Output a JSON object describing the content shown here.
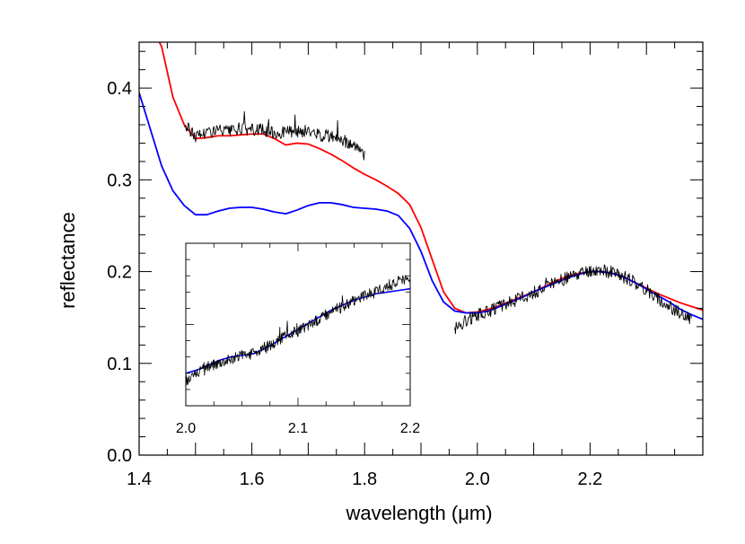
{
  "chart_data": [
    {
      "type": "line",
      "title": "",
      "xlabel": "wavelength (μm)",
      "ylabel": "reflectance",
      "xlim": [
        1.4,
        2.4
      ],
      "ylim": [
        0.0,
        0.45
      ],
      "x_ticks": [
        1.4,
        1.6,
        1.8,
        2.0,
        2.2
      ],
      "x_tick_labels": [
        "1.4",
        "1.6",
        "1.8",
        "2.0",
        "2.2"
      ],
      "y_ticks": [
        0.0,
        0.1,
        0.2,
        0.3,
        0.4
      ],
      "y_tick_labels": [
        "0.0",
        "0.1",
        "0.2",
        "0.3",
        "0.4"
      ],
      "grid": false,
      "series": [
        {
          "color": "#ff0000",
          "x": [
            1.4,
            1.42,
            1.44,
            1.46,
            1.48,
            1.5,
            1.52,
            1.54,
            1.56,
            1.58,
            1.6,
            1.62,
            1.64,
            1.66,
            1.68,
            1.7,
            1.72,
            1.74,
            1.76,
            1.78,
            1.8,
            1.82,
            1.84,
            1.86,
            1.88,
            1.9,
            1.92,
            1.94,
            1.96,
            1.98,
            2.0,
            2.02,
            2.04,
            2.06,
            2.08,
            2.1,
            2.12,
            2.14,
            2.16,
            2.18,
            2.2,
            2.22,
            2.24,
            2.26,
            2.28,
            2.3,
            2.32,
            2.34,
            2.36,
            2.38,
            2.4
          ],
          "y": [
            0.5,
            0.47,
            0.445,
            0.39,
            0.36,
            0.345,
            0.346,
            0.348,
            0.348,
            0.349,
            0.35,
            0.35,
            0.345,
            0.338,
            0.34,
            0.339,
            0.334,
            0.328,
            0.321,
            0.313,
            0.306,
            0.3,
            0.293,
            0.285,
            0.273,
            0.248,
            0.213,
            0.178,
            0.16,
            0.155,
            0.156,
            0.159,
            0.163,
            0.168,
            0.173,
            0.178,
            0.184,
            0.19,
            0.195,
            0.198,
            0.2,
            0.2,
            0.198,
            0.194,
            0.188,
            0.182,
            0.176,
            0.171,
            0.166,
            0.162,
            0.158
          ]
        },
        {
          "color": "#0000ff",
          "x": [
            1.4,
            1.42,
            1.44,
            1.46,
            1.48,
            1.5,
            1.52,
            1.54,
            1.56,
            1.58,
            1.6,
            1.62,
            1.64,
            1.66,
            1.68,
            1.7,
            1.72,
            1.74,
            1.76,
            1.78,
            1.8,
            1.82,
            1.84,
            1.86,
            1.88,
            1.9,
            1.92,
            1.94,
            1.96,
            1.98,
            2.0,
            2.02,
            2.04,
            2.06,
            2.08,
            2.1,
            2.12,
            2.14,
            2.16,
            2.18,
            2.2,
            2.22,
            2.24,
            2.26,
            2.28,
            2.3,
            2.32,
            2.34,
            2.36,
            2.38,
            2.4
          ],
          "y": [
            0.395,
            0.355,
            0.315,
            0.288,
            0.272,
            0.262,
            0.262,
            0.266,
            0.269,
            0.27,
            0.27,
            0.268,
            0.265,
            0.263,
            0.267,
            0.272,
            0.275,
            0.275,
            0.273,
            0.27,
            0.269,
            0.268,
            0.266,
            0.261,
            0.247,
            0.222,
            0.19,
            0.167,
            0.157,
            0.155,
            0.155,
            0.157,
            0.162,
            0.167,
            0.172,
            0.178,
            0.183,
            0.188,
            0.193,
            0.197,
            0.2,
            0.2,
            0.198,
            0.194,
            0.188,
            0.181,
            0.174,
            0.167,
            0.159,
            0.153,
            0.148
          ]
        },
        {
          "color": "#000000",
          "x": [
            1.48,
            1.5,
            1.52,
            1.54,
            1.56,
            1.58,
            1.6,
            1.62,
            1.64,
            1.66,
            1.68,
            1.7,
            1.72,
            1.74,
            1.76,
            1.78,
            1.8
          ],
          "y": [
            0.36,
            0.348,
            0.352,
            0.354,
            0.352,
            0.356,
            0.355,
            0.354,
            0.351,
            0.352,
            0.352,
            0.353,
            0.349,
            0.347,
            0.344,
            0.338,
            0.325
          ]
        },
        {
          "color": "#000000",
          "x": [
            1.96,
            1.98,
            2.0,
            2.02,
            2.04,
            2.06,
            2.08,
            2.1,
            2.12,
            2.14,
            2.16,
            2.18,
            2.2,
            2.22,
            2.24,
            2.26,
            2.28,
            2.3,
            2.32,
            2.34,
            2.36,
            2.38
          ],
          "y": [
            0.138,
            0.147,
            0.153,
            0.157,
            0.162,
            0.167,
            0.172,
            0.177,
            0.183,
            0.188,
            0.193,
            0.197,
            0.2,
            0.201,
            0.199,
            0.194,
            0.188,
            0.18,
            0.171,
            0.162,
            0.155,
            0.147
          ]
        }
      ]
    },
    {
      "type": "line",
      "title": "",
      "xlabel": "",
      "ylabel": "",
      "xlim": [
        2.0,
        2.2
      ],
      "ylim": [
        0.0,
        1.0
      ],
      "x_ticks": [
        2.0,
        2.1,
        2.2
      ],
      "x_tick_labels": [
        "2.0",
        "2.1",
        "2.2"
      ],
      "grid": false,
      "series": [
        {
          "color": "#0000ff",
          "x": [
            2.0,
            2.01,
            2.02,
            2.03,
            2.04,
            2.05,
            2.06,
            2.07,
            2.08,
            2.09,
            2.1,
            2.11,
            2.12,
            2.13,
            2.14,
            2.15,
            2.16,
            2.17,
            2.18,
            2.19,
            2.2
          ],
          "y": [
            0.2,
            0.22,
            0.25,
            0.28,
            0.3,
            0.31,
            0.32,
            0.35,
            0.39,
            0.43,
            0.47,
            0.51,
            0.55,
            0.59,
            0.62,
            0.65,
            0.67,
            0.69,
            0.7,
            0.71,
            0.72
          ]
        },
        {
          "color": "#000000",
          "x": [
            2.0,
            2.01,
            2.02,
            2.03,
            2.04,
            2.05,
            2.06,
            2.07,
            2.08,
            2.09,
            2.1,
            2.11,
            2.12,
            2.13,
            2.14,
            2.15,
            2.16,
            2.17,
            2.18,
            2.19,
            2.2
          ],
          "y": [
            0.15,
            0.21,
            0.24,
            0.27,
            0.29,
            0.31,
            0.32,
            0.36,
            0.39,
            0.44,
            0.46,
            0.5,
            0.54,
            0.58,
            0.61,
            0.65,
            0.68,
            0.7,
            0.74,
            0.76,
            0.78
          ]
        }
      ]
    }
  ]
}
